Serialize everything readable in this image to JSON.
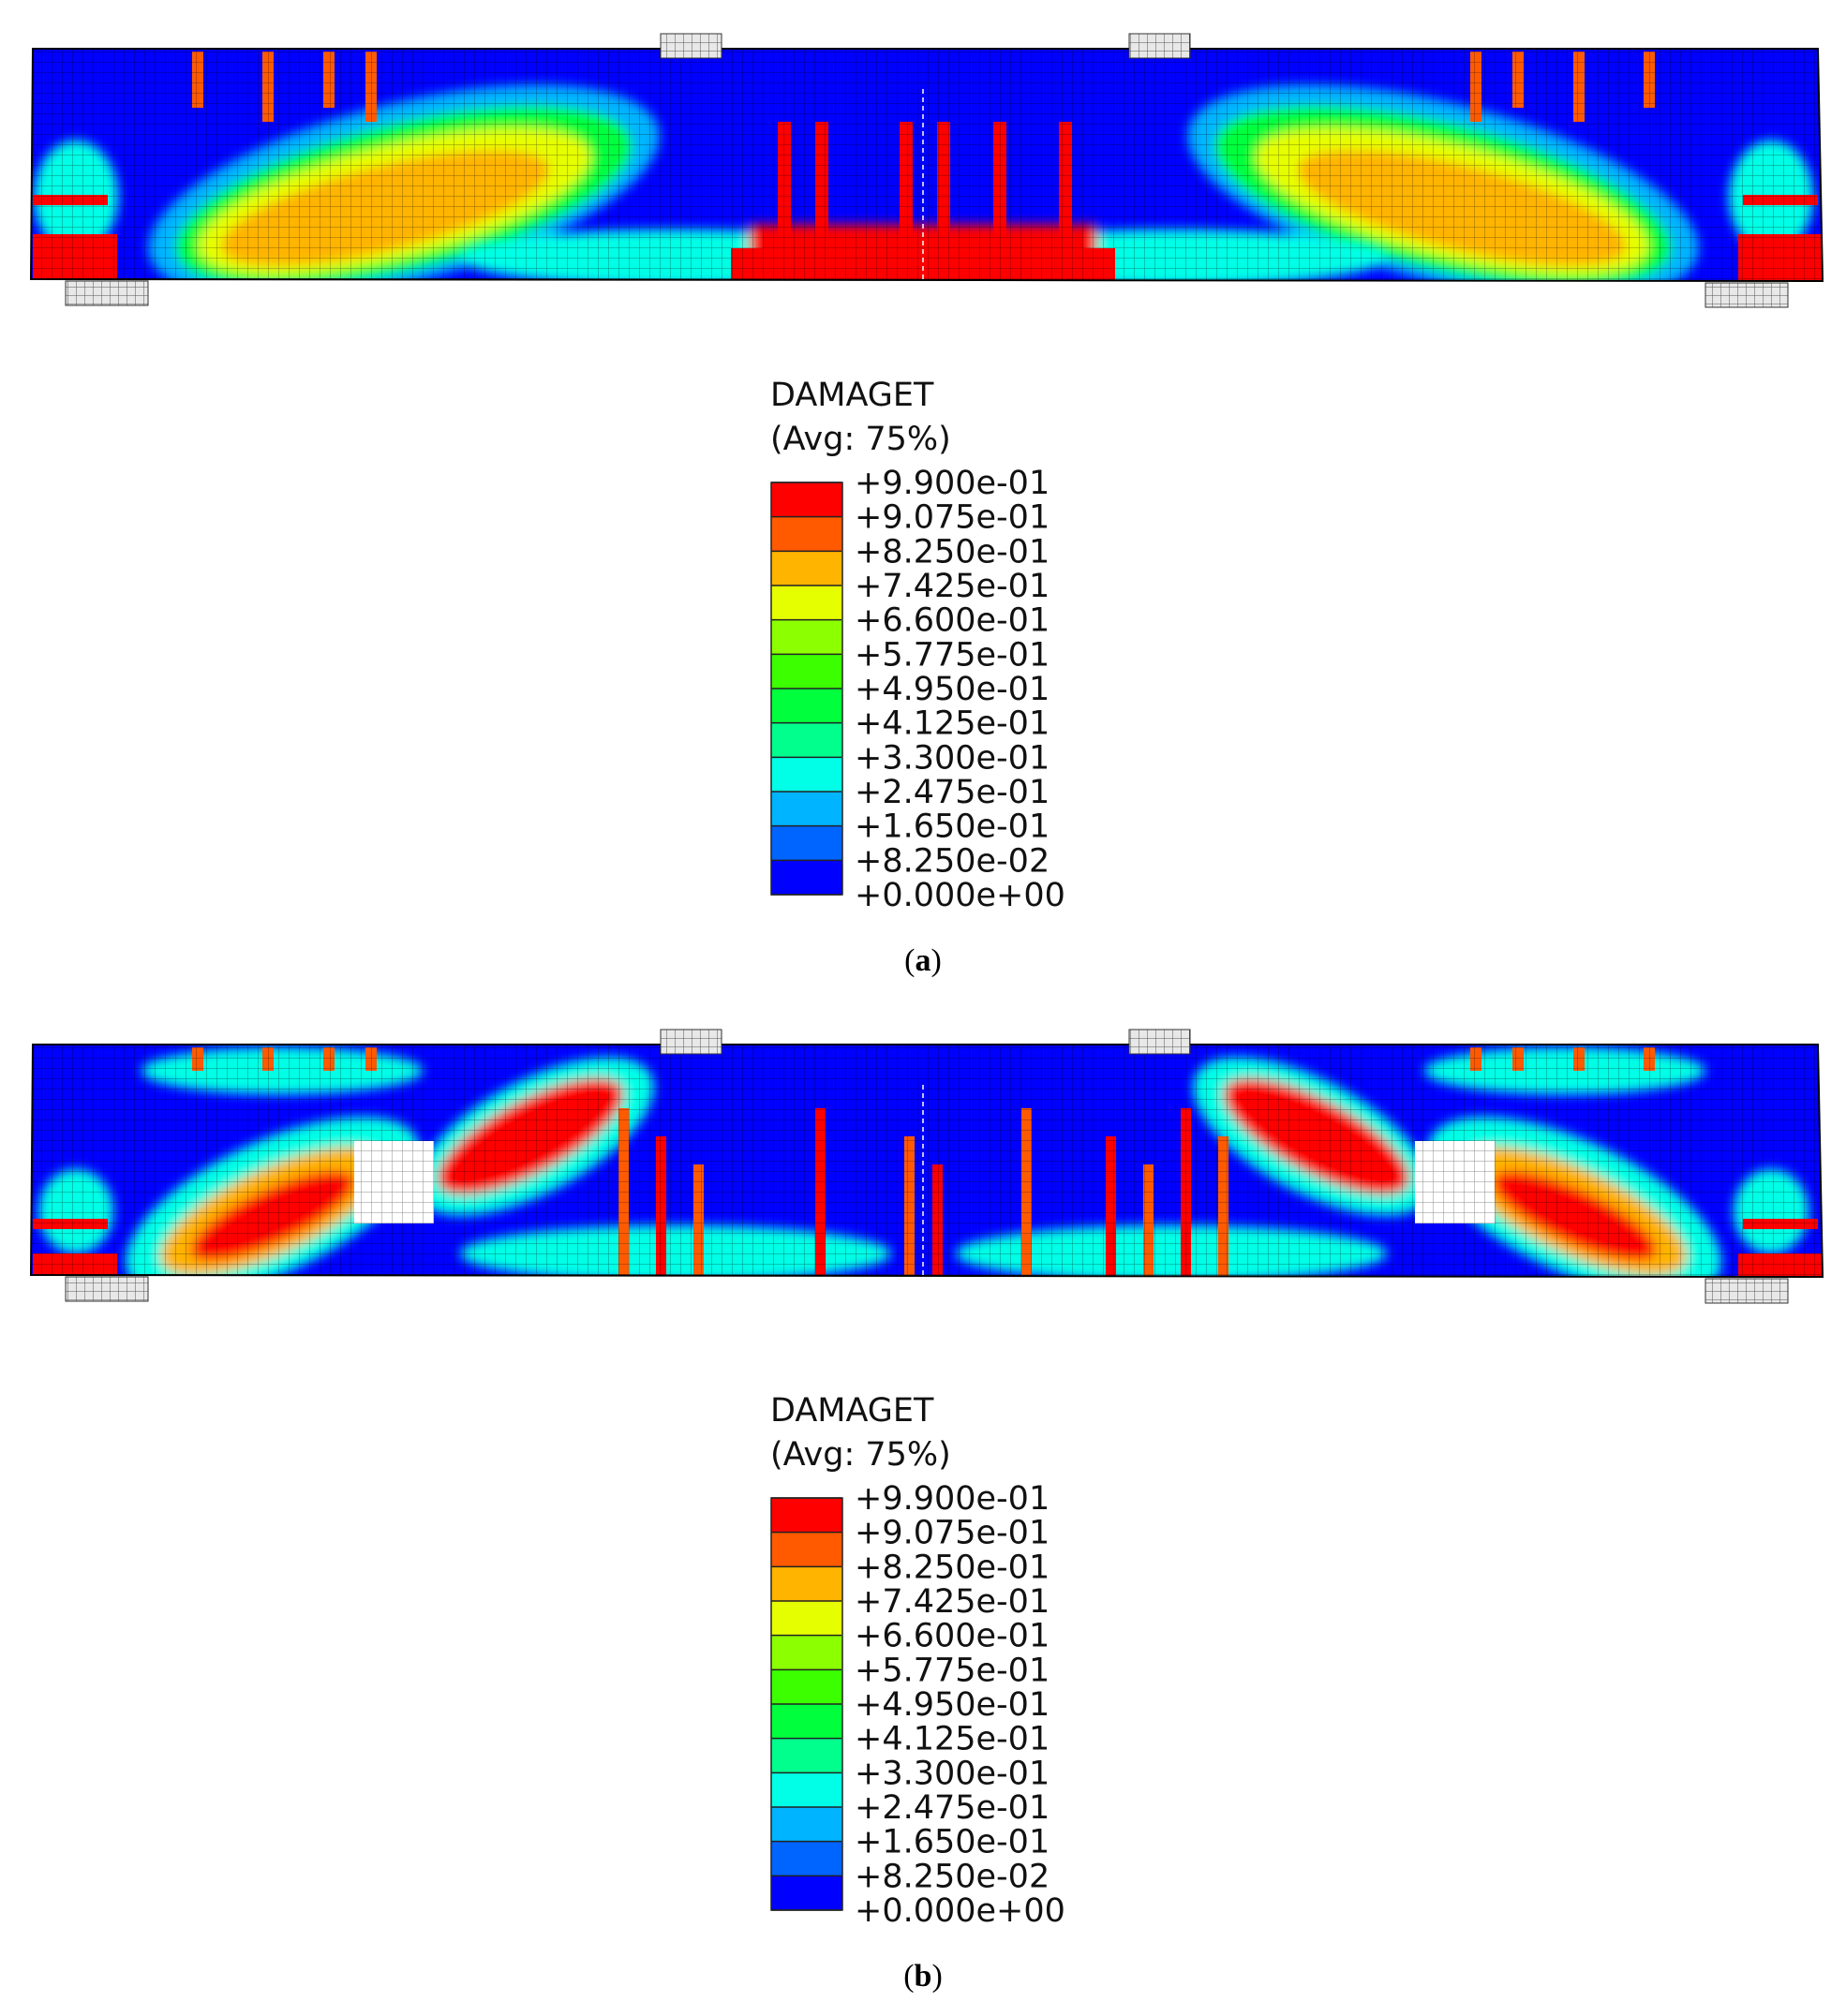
{
  "colors": [
    "#ff0000",
    "#ff5a00",
    "#ffb400",
    "#e6ff00",
    "#8cff00",
    "#3cff00",
    "#00ff3c",
    "#00ff8c",
    "#00ffe6",
    "#00b4ff",
    "#0064ff",
    "#0000ff"
  ],
  "panels": [
    {
      "legend": {
        "title": "DAMAGET",
        "subtitle": "(Avg: 75%)",
        "levels": [
          "+9.900e-01",
          "+9.075e-01",
          "+8.250e-01",
          "+7.425e-01",
          "+6.600e-01",
          "+5.775e-01",
          "+4.950e-01",
          "+4.125e-01",
          "+3.300e-01",
          "+2.475e-01",
          "+1.650e-01",
          "+8.250e-02",
          "+0.000e+00"
        ]
      },
      "caption": {
        "open": "(",
        "label": "a",
        "close": ")"
      }
    },
    {
      "legend": {
        "title": "DAMAGET",
        "subtitle": "(Avg: 75%)",
        "levels": [
          "+9.900e-01",
          "+9.075e-01",
          "+8.250e-01",
          "+7.425e-01",
          "+6.600e-01",
          "+5.775e-01",
          "+4.950e-01",
          "+4.125e-01",
          "+3.300e-01",
          "+2.475e-01",
          "+1.650e-01",
          "+8.250e-02",
          "+0.000e+00"
        ]
      },
      "caption": {
        "open": "(",
        "label": "b",
        "close": ")"
      }
    }
  ]
}
